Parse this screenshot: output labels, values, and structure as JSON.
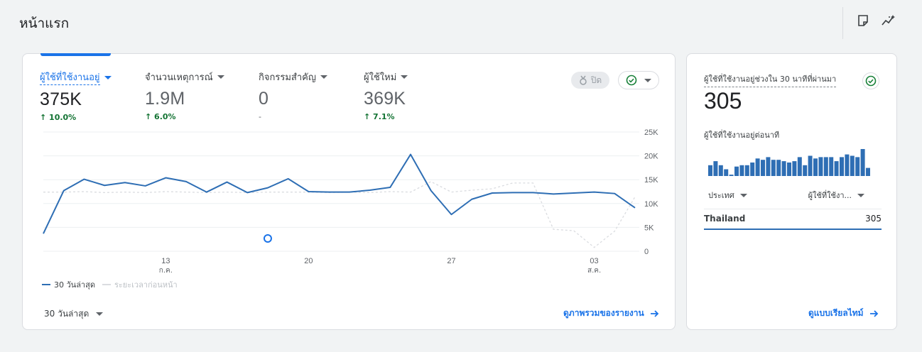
{
  "page": {
    "title": "หน้าแรก"
  },
  "toolbar": {
    "icons": [
      "note-icon",
      "insights-icon"
    ]
  },
  "main_card": {
    "metrics": [
      {
        "label": "ผู้ใช้ที่ใช้งานอยู่",
        "value": "375K",
        "change": "↑ 10.0%"
      },
      {
        "label": "จำนวนเหตุการณ์",
        "value": "1.9M",
        "change": "↑ 6.0%"
      },
      {
        "label": "กิจกรรมสำคัญ",
        "value": "0",
        "change": "-"
      },
      {
        "label": "ผู้ใช้ใหม่",
        "value": "369K",
        "change": "↑ 7.1%"
      }
    ],
    "off_label": "ปิด",
    "legend": {
      "current": "30 วันล่าสุด",
      "previous": "ระยะเวลาก่อนหน้า"
    },
    "date_range": "30 วันล่าสุด",
    "view_report_link": "ดูภาพรวมของรายงาน"
  },
  "chart_data": {
    "type": "line",
    "y_ticks": [
      "25K",
      "20K",
      "15K",
      "10K",
      "5K",
      "0"
    ],
    "ylim": [
      0,
      25000
    ],
    "x_ticks": [
      {
        "label": "13",
        "sub": "ก.ค.",
        "index": 6
      },
      {
        "label": "20",
        "sub": "",
        "index": 13
      },
      {
        "label": "27",
        "sub": "",
        "index": 20
      },
      {
        "label": "03",
        "sub": "ส.ค.",
        "index": 27
      }
    ],
    "series": [
      {
        "name": "30 วันล่าสุด",
        "color": "#2e6eb4",
        "values": [
          3700,
          12700,
          15100,
          13800,
          14400,
          13700,
          15400,
          14600,
          12400,
          14500,
          12300,
          13300,
          15200,
          12500,
          12400,
          12400,
          12800,
          13400,
          20300,
          12700,
          7700,
          10900,
          12200,
          12300,
          12300,
          12000,
          12200,
          12400,
          12100,
          9100
        ]
      },
      {
        "name": "ระยะเวลาก่อนหน้า",
        "color": "#dadce0",
        "values": [
          12400,
          12400,
          12500,
          12300,
          12400,
          12300,
          12500,
          12400,
          12300,
          12400,
          12300,
          12400,
          12400,
          12400,
          12300,
          12400,
          12300,
          12500,
          12400,
          14600,
          12400,
          12800,
          13100,
          14300,
          14300,
          4600,
          4300,
          800,
          4200,
          11400
        ]
      }
    ],
    "marker_index": 11
  },
  "realtime_card": {
    "title": "ผู้ใช้ที่ใช้งานอยู่ช่วงใน 30 นาทีที่ผ่านมา",
    "value": "305",
    "per_minute_label": "ผู้ใช้ที่ใช้งานอยู่ต่อนาที",
    "bars": [
      8,
      11,
      8,
      5,
      1,
      7,
      8,
      8,
      10,
      13,
      12,
      14,
      12,
      12,
      11,
      10,
      11,
      14,
      8,
      15,
      13,
      14,
      14,
      14,
      11,
      14,
      16,
      15,
      14,
      20,
      6
    ],
    "col_country": "ประเทศ",
    "col_users": "ผู้ใช้ที่ใช้งา...",
    "rows": [
      {
        "country": "Thailand",
        "users": "305"
      }
    ],
    "view_realtime_link": "ดูแบบเรียลไทม์"
  }
}
